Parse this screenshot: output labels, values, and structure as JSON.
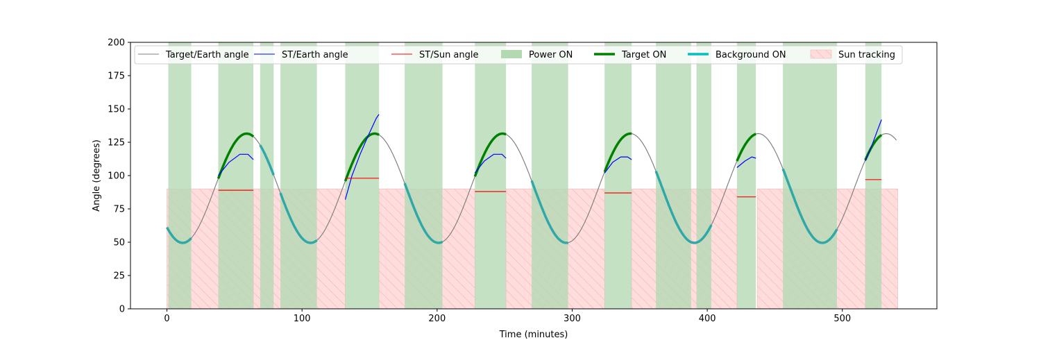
{
  "chart_data": {
    "type": "line",
    "title": "",
    "xlabel": "Time (minutes)",
    "ylabel": "Angle (degrees)",
    "xlim": [
      -27,
      570
    ],
    "ylim": [
      0,
      200
    ],
    "x_ticks": [
      0,
      100,
      200,
      300,
      400,
      500
    ],
    "y_ticks": [
      0,
      25,
      50,
      75,
      100,
      125,
      150,
      175,
      200
    ],
    "grid": false,
    "legend_position": "top",
    "target_earth": {
      "name": "Target/Earth angle",
      "color": "#808080",
      "x_range": [
        0,
        540
      ],
      "mean": 90.5,
      "amplitude": 41,
      "period": 94.7,
      "phase_peak": 59
    },
    "power_on": {
      "name": "Power ON",
      "color": "#b3d9b3",
      "intervals": [
        [
          1,
          18
        ],
        [
          38,
          64
        ],
        [
          69,
          79
        ],
        [
          84,
          111
        ],
        [
          132,
          157
        ],
        [
          176,
          204
        ],
        [
          228,
          251
        ],
        [
          270,
          297
        ],
        [
          324,
          344
        ],
        [
          362,
          388
        ],
        [
          392,
          403
        ],
        [
          422,
          436
        ],
        [
          456,
          496
        ],
        [
          517,
          529
        ]
      ]
    },
    "sun_tracking": {
      "name": "Sun tracking",
      "color": "#ffdddd",
      "hatch_color": "#f2b3b3",
      "y_range": [
        0,
        90
      ],
      "intervals": [
        [
          0,
          64
        ],
        [
          64,
          132
        ],
        [
          157,
          228
        ],
        [
          251,
          324
        ],
        [
          344,
          422
        ],
        [
          437,
          517
        ],
        [
          517,
          541
        ]
      ]
    },
    "target_on": {
      "name": "Target ON",
      "color": "#008000",
      "intervals": [
        [
          38,
          64
        ],
        [
          132,
          157
        ],
        [
          228,
          251
        ],
        [
          324,
          344
        ],
        [
          422,
          436
        ],
        [
          517,
          529
        ]
      ]
    },
    "background_on": {
      "name": "Background ON",
      "color": "#00c0c0",
      "intervals": [
        [
          0,
          18
        ],
        [
          69,
          79
        ],
        [
          84,
          111
        ],
        [
          176,
          204
        ],
        [
          270,
          297
        ],
        [
          362,
          403
        ],
        [
          456,
          496
        ]
      ]
    },
    "st_earth": {
      "name": "ST/Earth angle",
      "color": "#0000ff",
      "segments": [
        {
          "x": [
            38,
            46,
            54,
            60,
            64
          ],
          "y": [
            100,
            110,
            116,
            116,
            112
          ]
        },
        {
          "x": [
            132,
            137,
            143,
            149,
            155,
            157
          ],
          "y": [
            82,
            100,
            116,
            130,
            143,
            146
          ]
        },
        {
          "x": [
            228,
            235,
            242,
            248,
            251
          ],
          "y": [
            102,
            111,
            116,
            116,
            113
          ]
        },
        {
          "x": [
            324,
            330,
            336,
            341,
            344
          ],
          "y": [
            102,
            110,
            114,
            114,
            112
          ]
        },
        {
          "x": [
            422,
            428,
            433,
            436
          ],
          "y": [
            106,
            111,
            114,
            113
          ]
        },
        {
          "x": [
            517,
            522,
            526,
            529
          ],
          "y": [
            111,
            123,
            134,
            142
          ]
        }
      ]
    },
    "st_sun": {
      "name": "ST/Sun angle",
      "color": "#ff0000",
      "segments": [
        {
          "x": [
            38,
            64
          ],
          "y": [
            89,
            89
          ]
        },
        {
          "x": [
            132,
            157
          ],
          "y": [
            98,
            98
          ]
        },
        {
          "x": [
            228,
            251
          ],
          "y": [
            88,
            88
          ]
        },
        {
          "x": [
            324,
            344
          ],
          "y": [
            87,
            87
          ]
        },
        {
          "x": [
            422,
            436
          ],
          "y": [
            84,
            84
          ]
        },
        {
          "x": [
            517,
            529
          ],
          "y": [
            97,
            97
          ]
        }
      ]
    },
    "legend": [
      {
        "label": "Target/Earth angle",
        "kind": "line",
        "color": "#808080",
        "width": 1
      },
      {
        "label": "ST/Earth angle",
        "kind": "line",
        "color": "#0000ff",
        "width": 1
      },
      {
        "label": "ST/Sun angle",
        "kind": "line",
        "color": "#ff0000",
        "width": 1
      },
      {
        "label": "Power ON",
        "kind": "patch",
        "color": "#b3d9b3"
      },
      {
        "label": "Target ON",
        "kind": "line",
        "color": "#008000",
        "width": 3.5
      },
      {
        "label": "Background ON",
        "kind": "line",
        "color": "#00c0c0",
        "width": 3.5
      },
      {
        "label": "Sun tracking",
        "kind": "hatch",
        "color": "#ffdddd"
      }
    ]
  }
}
